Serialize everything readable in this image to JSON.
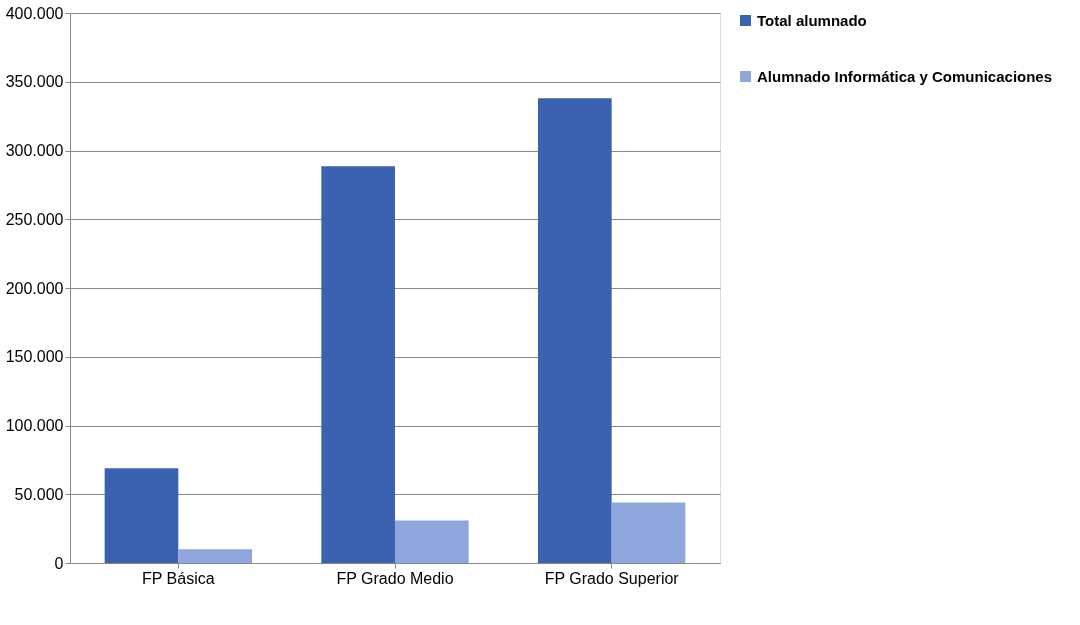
{
  "chart_data": {
    "type": "bar",
    "categories": [
      "FP Básica",
      "FP Grado Medio",
      "FP Grado Superior"
    ],
    "series": [
      {
        "name": "Total alumnado",
        "color": "#3a62b0",
        "values": [
          69000,
          288500,
          338000
        ]
      },
      {
        "name": "Alumnado Informática y Comunicaciones",
        "color": "#8fa6dc",
        "values": [
          10000,
          31000,
          44000
        ]
      }
    ],
    "ylim": [
      0,
      400000
    ],
    "yticks": [
      {
        "value": 0,
        "label": "0"
      },
      {
        "value": 50000,
        "label": "50.000"
      },
      {
        "value": 100000,
        "label": "100.000"
      },
      {
        "value": 150000,
        "label": "150.000"
      },
      {
        "value": 200000,
        "label": "200.000"
      },
      {
        "value": 250000,
        "label": "250.000"
      },
      {
        "value": 300000,
        "label": "300.000"
      },
      {
        "value": 350000,
        "label": "350.000"
      },
      {
        "value": 400000,
        "label": "400.000"
      }
    ],
    "grid": "y",
    "legend": "right"
  }
}
